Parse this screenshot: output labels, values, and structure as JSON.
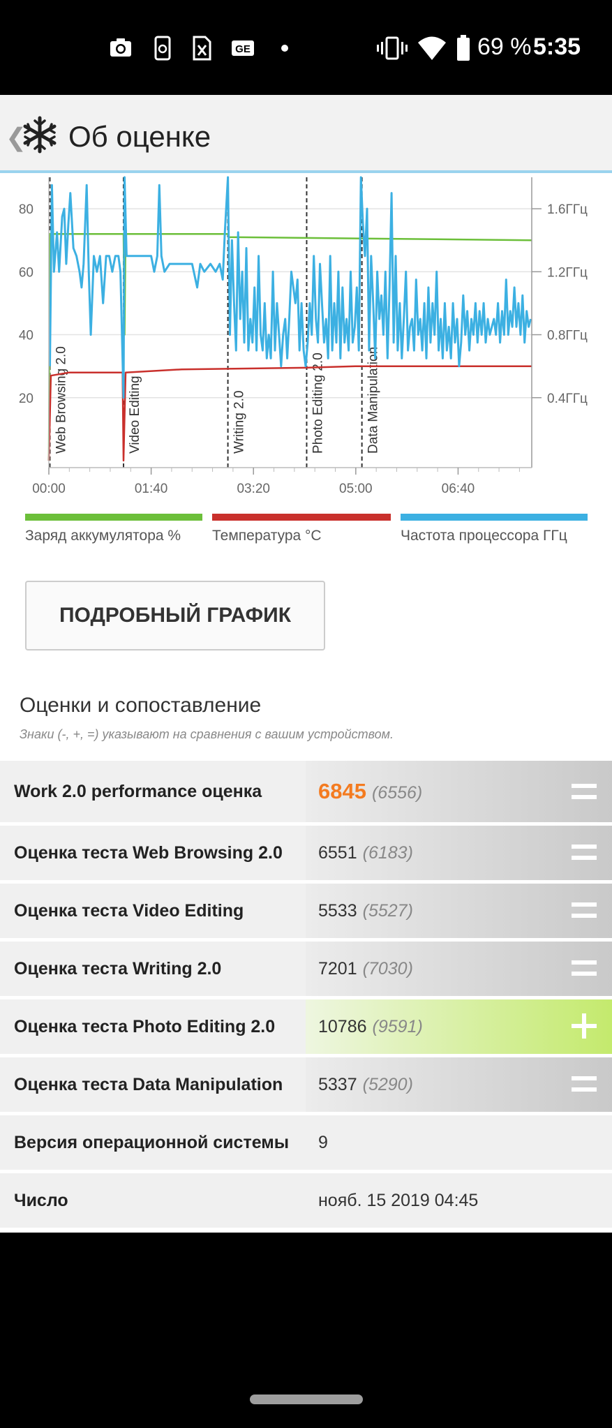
{
  "status_bar": {
    "battery_percent": "69 %",
    "time": "5:35"
  },
  "app_bar": {
    "title": "Об оценке"
  },
  "chart_data": {
    "type": "line",
    "x_ticks": [
      "00:00",
      "01:40",
      "03:20",
      "05:00",
      "06:40"
    ],
    "x_tick_minutes": [
      0,
      100,
      200,
      300,
      400
    ],
    "x_range_minutes": [
      0,
      472
    ],
    "y_left_ticks": [
      "80",
      "60",
      "40",
      "20"
    ],
    "y_left_values": [
      80,
      60,
      40,
      20
    ],
    "y_left_range": [
      0,
      90
    ],
    "y_right_ticks": [
      "1.6ГГц",
      "1.2ГГц",
      "0.8ГГц",
      "0.4ГГц"
    ],
    "y_right_values": [
      1.6,
      1.2,
      0.8,
      0.4
    ],
    "y_right_range": [
      0,
      1.8
    ],
    "sections": [
      {
        "label": "Web Browsing 2.0",
        "start_min": 1
      },
      {
        "label": "Video Editing",
        "start_min": 73
      },
      {
        "label": "Writing 2.0",
        "start_min": 175
      },
      {
        "label": "Photo Editing 2.0",
        "start_min": 252
      },
      {
        "label": "Data Manipulation",
        "start_min": 306
      }
    ],
    "series": [
      {
        "name": "Заряд аккумулятора %",
        "color": "#6cbf3a",
        "axis": "left",
        "points": [
          [
            0,
            0
          ],
          [
            1,
            72
          ],
          [
            73,
            72
          ],
          [
            74,
            40
          ],
          [
            75,
            72
          ],
          [
            175,
            72
          ],
          [
            176,
            71
          ],
          [
            472,
            70
          ]
        ]
      },
      {
        "name": "Температура °C",
        "color": "#c9302c",
        "axis": "left",
        "points": [
          [
            0,
            0
          ],
          [
            2,
            27
          ],
          [
            20,
            28
          ],
          [
            72,
            28
          ],
          [
            73,
            0
          ],
          [
            75,
            28
          ],
          [
            130,
            29
          ],
          [
            250,
            29.5
          ],
          [
            300,
            30
          ],
          [
            472,
            30
          ]
        ]
      },
      {
        "name": "Частота процессора ГГц",
        "color": "#3cb0e2",
        "axis": "right",
        "points": [
          [
            1,
            0.6
          ],
          [
            3,
            1.75
          ],
          [
            5,
            1.2
          ],
          [
            8,
            1.45
          ],
          [
            10,
            1.2
          ],
          [
            13,
            1.55
          ],
          [
            15,
            1.6
          ],
          [
            17,
            1.25
          ],
          [
            19,
            1.5
          ],
          [
            21,
            1.7
          ],
          [
            24,
            1.35
          ],
          [
            27,
            1.3
          ],
          [
            30,
            1.2
          ],
          [
            32,
            1.1
          ],
          [
            34,
            1.25
          ],
          [
            37,
            1.75
          ],
          [
            39,
            1.2
          ],
          [
            41,
            0.8
          ],
          [
            44,
            1.3
          ],
          [
            47,
            1.2
          ],
          [
            50,
            1.3
          ],
          [
            53,
            1.0
          ],
          [
            56,
            1.3
          ],
          [
            59,
            1.3
          ],
          [
            62,
            1.2
          ],
          [
            65,
            1.3
          ],
          [
            68,
            1.3
          ],
          [
            70,
            1.2
          ],
          [
            73,
            0.4
          ],
          [
            74,
            1.8
          ],
          [
            76,
            1.3
          ],
          [
            80,
            1.3
          ],
          [
            85,
            1.3
          ],
          [
            90,
            1.3
          ],
          [
            95,
            1.3
          ],
          [
            100,
            1.3
          ],
          [
            103,
            1.2
          ],
          [
            106,
            1.3
          ],
          [
            108,
            1.75
          ],
          [
            110,
            1.3
          ],
          [
            113,
            1.2
          ],
          [
            118,
            1.25
          ],
          [
            125,
            1.25
          ],
          [
            133,
            1.25
          ],
          [
            140,
            1.25
          ],
          [
            145,
            1.1
          ],
          [
            148,
            1.25
          ],
          [
            152,
            1.2
          ],
          [
            158,
            1.25
          ],
          [
            163,
            1.2
          ],
          [
            167,
            1.25
          ],
          [
            170,
            1.15
          ],
          [
            172,
            1.45
          ],
          [
            175,
            1.8
          ],
          [
            177,
            0.8
          ],
          [
            179,
            1.4
          ],
          [
            181,
            1.0
          ],
          [
            183,
            0.7
          ],
          [
            185,
            1.45
          ],
          [
            187,
            0.9
          ],
          [
            189,
            1.2
          ],
          [
            191,
            0.75
          ],
          [
            193,
            1.35
          ],
          [
            195,
            0.7
          ],
          [
            197,
            0.9
          ],
          [
            199,
            0.75
          ],
          [
            201,
            1.1
          ],
          [
            203,
            0.7
          ],
          [
            205,
            1.3
          ],
          [
            207,
            0.8
          ],
          [
            209,
            0.7
          ],
          [
            211,
            1.0
          ],
          [
            213,
            0.65
          ],
          [
            215,
            0.8
          ],
          [
            217,
            0.65
          ],
          [
            219,
            1.2
          ],
          [
            221,
            0.7
          ],
          [
            223,
            1.0
          ],
          [
            225,
            0.8
          ],
          [
            227,
            0.6
          ],
          [
            229,
            0.8
          ],
          [
            231,
            0.9
          ],
          [
            233,
            0.65
          ],
          [
            235,
            0.9
          ],
          [
            237,
            1.2
          ],
          [
            239,
            1.1
          ],
          [
            241,
            1.0
          ],
          [
            243,
            1.15
          ],
          [
            245,
            0.7
          ],
          [
            247,
            1.0
          ],
          [
            249,
            0.7
          ],
          [
            251,
            0.6
          ],
          [
            253,
            0.75
          ],
          [
            255,
            1.0
          ],
          [
            257,
            0.8
          ],
          [
            259,
            1.3
          ],
          [
            261,
            0.9
          ],
          [
            263,
            0.75
          ],
          [
            265,
            1.25
          ],
          [
            267,
            1.0
          ],
          [
            269,
            0.75
          ],
          [
            271,
            0.9
          ],
          [
            273,
            0.65
          ],
          [
            275,
            1.3
          ],
          [
            277,
            0.7
          ],
          [
            279,
            1.0
          ],
          [
            281,
            0.75
          ],
          [
            283,
            1.2
          ],
          [
            285,
            0.65
          ],
          [
            287,
            1.1
          ],
          [
            289,
            0.75
          ],
          [
            291,
            0.9
          ],
          [
            293,
            0.7
          ],
          [
            295,
            1.2
          ],
          [
            297,
            0.75
          ],
          [
            299,
            0.85
          ],
          [
            301,
            1.1
          ],
          [
            303,
            0.7
          ],
          [
            305,
            1.8
          ],
          [
            307,
            1.5
          ],
          [
            309,
            1.3
          ],
          [
            311,
            1.6
          ],
          [
            313,
            0.7
          ],
          [
            315,
            1.3
          ],
          [
            317,
            1.0
          ],
          [
            319,
            0.65
          ],
          [
            321,
            1.2
          ],
          [
            323,
            0.9
          ],
          [
            325,
            1.05
          ],
          [
            327,
            0.8
          ],
          [
            329,
            1.2
          ],
          [
            331,
            0.65
          ],
          [
            333,
            1.1
          ],
          [
            335,
            1.7
          ],
          [
            337,
            0.75
          ],
          [
            339,
            1.3
          ],
          [
            341,
            0.7
          ],
          [
            343,
            1.0
          ],
          [
            345,
            0.65
          ],
          [
            347,
            0.9
          ],
          [
            349,
            1.2
          ],
          [
            351,
            0.7
          ],
          [
            353,
            0.85
          ],
          [
            355,
            0.9
          ],
          [
            357,
            0.7
          ],
          [
            359,
            1.15
          ],
          [
            361,
            0.8
          ],
          [
            363,
            0.9
          ],
          [
            365,
            0.7
          ],
          [
            367,
            1.0
          ],
          [
            369,
            0.65
          ],
          [
            371,
            1.1
          ],
          [
            373,
            0.75
          ],
          [
            375,
            1.0
          ],
          [
            377,
            0.8
          ],
          [
            379,
            1.2
          ],
          [
            381,
            0.7
          ],
          [
            383,
            0.9
          ],
          [
            385,
            0.65
          ],
          [
            387,
            1.0
          ],
          [
            389,
            0.7
          ],
          [
            391,
            0.85
          ],
          [
            393,
            0.65
          ],
          [
            395,
            1.0
          ],
          [
            397,
            0.75
          ],
          [
            399,
            0.9
          ],
          [
            401,
            0.6
          ],
          [
            403,
            0.75
          ],
          [
            405,
            1.05
          ],
          [
            407,
            0.8
          ],
          [
            409,
            0.95
          ],
          [
            411,
            0.7
          ],
          [
            413,
            0.9
          ],
          [
            415,
            0.8
          ],
          [
            417,
            1.0
          ],
          [
            419,
            0.75
          ],
          [
            421,
            0.95
          ],
          [
            423,
            0.8
          ],
          [
            425,
            1.0
          ],
          [
            427,
            0.75
          ],
          [
            429,
            0.9
          ],
          [
            431,
            0.8
          ],
          [
            433,
            0.85
          ],
          [
            435,
            0.9
          ],
          [
            437,
            0.8
          ],
          [
            439,
            1.0
          ],
          [
            441,
            0.75
          ],
          [
            443,
            0.95
          ],
          [
            445,
            0.8
          ],
          [
            447,
            1.15
          ],
          [
            449,
            0.8
          ],
          [
            451,
            0.95
          ],
          [
            453,
            0.85
          ],
          [
            455,
            1.1
          ],
          [
            457,
            0.85
          ],
          [
            459,
            1.0
          ],
          [
            461,
            0.8
          ],
          [
            463,
            1.05
          ],
          [
            465,
            0.75
          ],
          [
            467,
            0.95
          ],
          [
            469,
            0.85
          ],
          [
            471,
            0.9
          ]
        ]
      }
    ]
  },
  "legend": {
    "battery": {
      "label": "Заряд аккумулятора %",
      "color": "#6cbf3a"
    },
    "temperature": {
      "label": "Температура °C",
      "color": "#c9302c"
    },
    "cpu": {
      "label": "Частота процессора ГГц",
      "color": "#3cb0e2"
    }
  },
  "detail_button_label": "ПОДРОБНЫЙ ГРАФИК",
  "scores": {
    "title": "Оценки и сопоставление",
    "subtitle": "Знаки (-, +, =) указывают на сравнения с вашим устройством.",
    "rows": [
      {
        "label": "Work 2.0 performance оценка",
        "value": "6845",
        "compare": "(6556)",
        "sign": "equal"
      },
      {
        "label": "Оценка теста Web Browsing 2.0",
        "value": "6551",
        "compare": "(6183)",
        "sign": "equal"
      },
      {
        "label": "Оценка теста Video Editing",
        "value": "5533",
        "compare": "(5527)",
        "sign": "equal"
      },
      {
        "label": "Оценка теста Writing 2.0",
        "value": "7201",
        "compare": "(7030)",
        "sign": "equal"
      },
      {
        "label": "Оценка теста Photo Editing 2.0",
        "value": "10786",
        "compare": "(9591)",
        "sign": "plus"
      },
      {
        "label": "Оценка теста Data Manipulation",
        "value": "5337",
        "compare": "(5290)",
        "sign": "equal"
      }
    ],
    "os_label": "Версия операционной системы",
    "os_value": "9",
    "date_label": "Число",
    "date_value": "нояб. 15 2019 04:45"
  }
}
